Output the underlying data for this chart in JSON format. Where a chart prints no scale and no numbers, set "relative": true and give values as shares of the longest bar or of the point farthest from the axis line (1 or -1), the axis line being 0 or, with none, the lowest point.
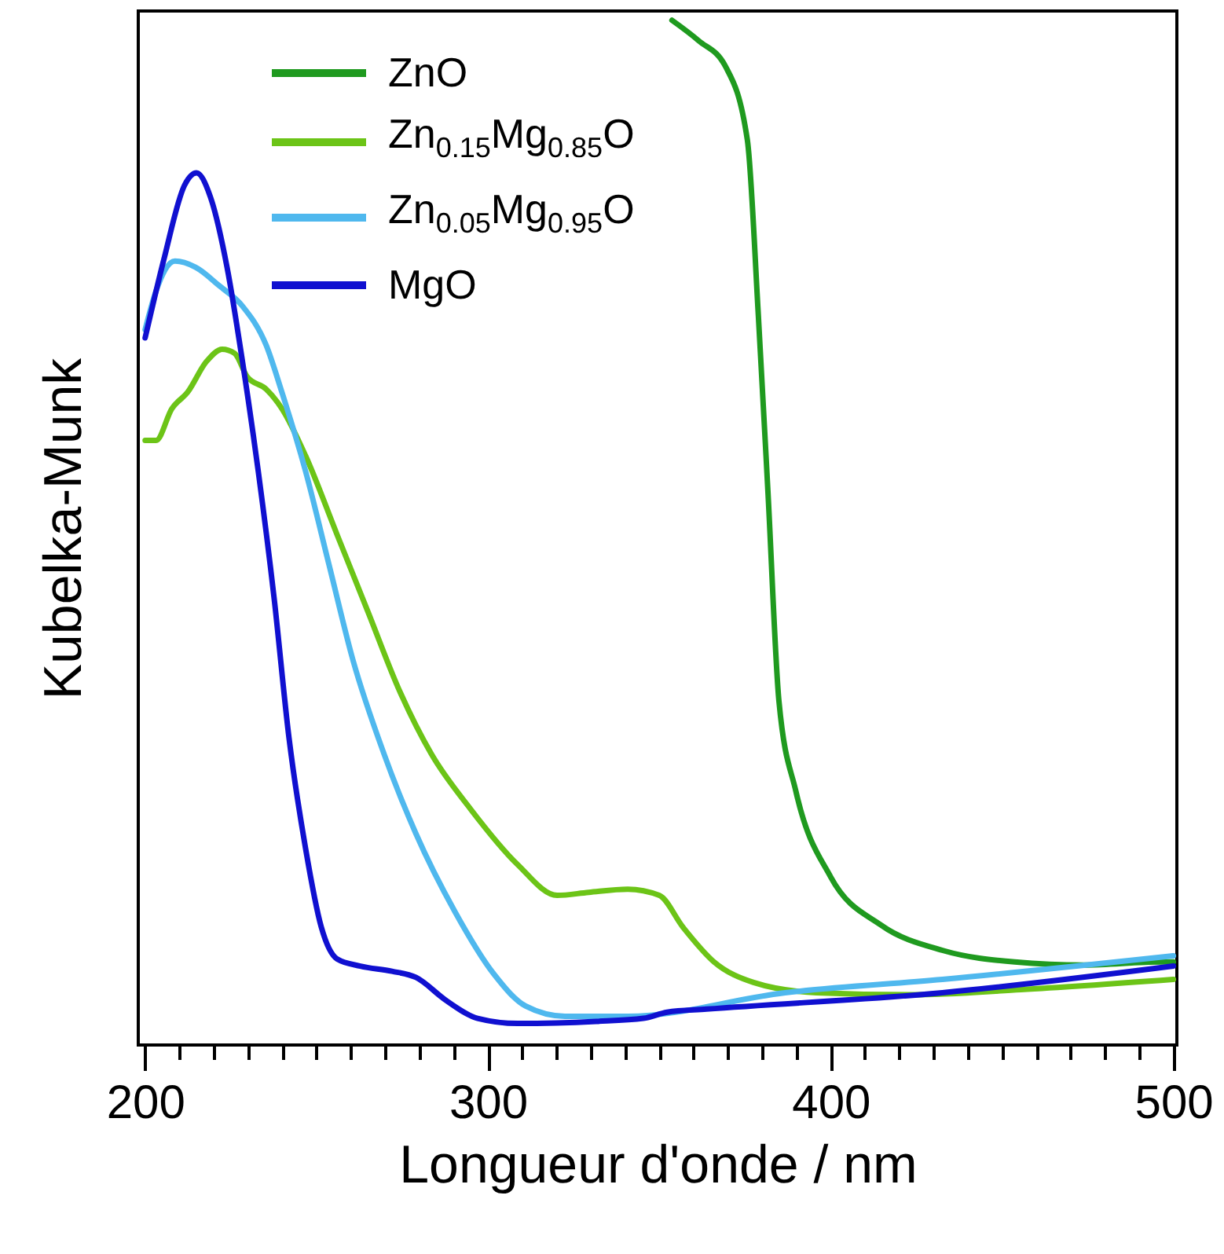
{
  "chart_data": {
    "type": "line",
    "xlabel": "Longueur d'onde / nm",
    "ylabel": "Kubelka-Munk",
    "relative": true,
    "legend": "top left",
    "xlim": [
      198,
      501
    ],
    "xticks": [
      200,
      {
        "value": 210,
        "label": null
      },
      {
        "value": 220,
        "label": null
      },
      {
        "value": 230,
        "label": null
      },
      {
        "value": 240,
        "label": null
      },
      {
        "value": 250,
        "label": null
      },
      {
        "value": 260,
        "label": null
      },
      {
        "value": 270,
        "label": null
      },
      {
        "value": 280,
        "label": null
      },
      {
        "value": 290,
        "label": null
      },
      300,
      {
        "value": 310,
        "label": null
      },
      {
        "value": 320,
        "label": null
      },
      {
        "value": 330,
        "label": null
      },
      {
        "value": 340,
        "label": null
      },
      {
        "value": 350,
        "label": null
      },
      {
        "value": 360,
        "label": null
      },
      {
        "value": 370,
        "label": null
      },
      {
        "value": 380,
        "label": null
      },
      {
        "value": 390,
        "label": null
      },
      400,
      {
        "value": 410,
        "label": null
      },
      {
        "value": 420,
        "label": null
      },
      {
        "value": 430,
        "label": null
      },
      {
        "value": 440,
        "label": null
      },
      {
        "value": 450,
        "label": null
      },
      {
        "value": 460,
        "label": null
      },
      {
        "value": 470,
        "label": null
      },
      {
        "value": 480,
        "label": null
      },
      {
        "value": 490,
        "label": null
      },
      500
    ],
    "series": [
      {
        "name": "ZnO",
        "color": "#1f9a1f",
        "x": [
          353.7,
          361.5,
          369.3,
          375.7,
          378.9,
          381.7,
          384.9,
          389.9,
          400,
          414.7,
          433,
          453.7,
          473.9,
          496.3,
          500
        ],
        "values": [
          1.0,
          0.98,
          0.955,
          0.883,
          0.712,
          0.54,
          0.336,
          0.247,
          0.164,
          0.117,
          0.092,
          0.081,
          0.078,
          0.081,
          0.081
        ]
      },
      {
        "name": "Zn$_{0.15}$Mg$_{0.85}$O",
        "color": "#6cc417",
        "x": [
          200,
          203.2,
          207.8,
          212.4,
          217.9,
          222.5,
          226.1,
          229.8,
          235.3,
          239.9,
          246.8,
          256,
          265.1,
          274.3,
          283.5,
          295,
          308.7,
          320.2,
          329.4,
          340.8,
          350,
          356.9,
          366,
          377.5,
          395.9,
          423.4,
          455.5,
          500
        ],
        "values": [
          0.59,
          0.59,
          0.621,
          0.637,
          0.667,
          0.679,
          0.675,
          0.652,
          0.64,
          0.621,
          0.575,
          0.498,
          0.422,
          0.345,
          0.284,
          0.23,
          0.176,
          0.146,
          0.149,
          0.152,
          0.146,
          0.115,
          0.081,
          0.061,
          0.051,
          0.049,
          0.054,
          0.064
        ]
      },
      {
        "name": "Zn$_{0.05}$Mg$_{0.95}$O",
        "color": "#4fb8ee",
        "x": [
          200,
          203.2,
          208.7,
          214.7,
          221.6,
          228.4,
          235.3,
          239.9,
          246.8,
          253.7,
          260.6,
          269.7,
          278.9,
          290.4,
          301.8,
          311,
          322.5,
          340.8,
          386.7,
          432.6,
          500
        ],
        "values": [
          0.698,
          0.736,
          0.765,
          0.759,
          0.741,
          0.721,
          0.683,
          0.637,
          0.56,
          0.468,
          0.376,
          0.284,
          0.207,
          0.13,
          0.069,
          0.038,
          0.028,
          0.028,
          0.051,
          0.064,
          0.087
        ]
      },
      {
        "name": "MgO",
        "color": "#1010d0",
        "x": [
          200,
          205.5,
          211.5,
          215,
          219,
          223.9,
          228.4,
          233,
          237.6,
          242,
          246.8,
          251.4,
          256,
          262.8,
          272,
          279,
          288,
          297,
          308.7,
          331.6,
          345.4,
          352.3,
          363.8,
          432.6,
          500
        ],
        "values": [
          0.69,
          0.767,
          0.839,
          0.851,
          0.828,
          0.759,
          0.667,
          0.56,
          0.437,
          0.299,
          0.192,
          0.115,
          0.084,
          0.077,
          0.072,
          0.066,
          0.043,
          0.026,
          0.021,
          0.023,
          0.026,
          0.032,
          0.035,
          0.051,
          0.077
        ]
      }
    ]
  }
}
